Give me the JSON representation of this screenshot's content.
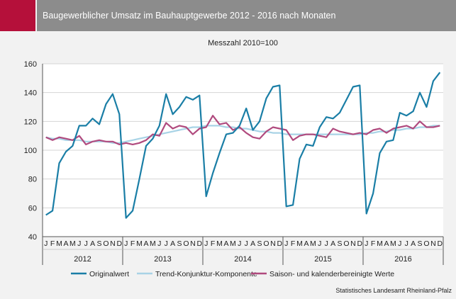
{
  "title": "Baugewerblicher Umsatz im Bauhauptgewerbe 2012 - 2016 nach Monaten",
  "source": "Statistisches Landesamt Rheinland-Pfalz",
  "colors": {
    "accent": "#b5103a",
    "title_bar": "#8c8c8c",
    "original": "#1a7ea6",
    "trend": "#a8d3e6",
    "seasonal": "#b04a7e"
  },
  "chart_data": {
    "type": "line",
    "subtitle": "Messzahl 2010=100",
    "ylim": [
      40,
      160
    ],
    "yticks": [
      40,
      60,
      80,
      100,
      120,
      140,
      160
    ],
    "grid": true,
    "month_labels": [
      "J",
      "F",
      "M",
      "A",
      "M",
      "J",
      "J",
      "A",
      "S",
      "O",
      "N",
      "D"
    ],
    "years": [
      "2012",
      "2013",
      "2014",
      "2015",
      "2016"
    ],
    "legend_position": "bottom",
    "series": [
      {
        "name": "Originalwert",
        "values": [
          55,
          58,
          91,
          99,
          103,
          117,
          117,
          122,
          118,
          132,
          139,
          125,
          53,
          58,
          80,
          103,
          108,
          117,
          139,
          125,
          130,
          137,
          135,
          138,
          68,
          84,
          98,
          111,
          112,
          117,
          129,
          114,
          120,
          136,
          144,
          145,
          61,
          62,
          94,
          104,
          103,
          116,
          123,
          122,
          126,
          135,
          144,
          145,
          56,
          70,
          98,
          106,
          107,
          126,
          124,
          127,
          140,
          130,
          148,
          154
        ]
      },
      {
        "name": "Trend-Konjunktur-Komponente",
        "values": [
          109,
          108,
          108,
          107,
          107,
          107,
          106,
          106,
          106,
          106,
          105,
          105,
          106,
          107,
          108,
          109,
          110,
          111,
          112,
          113,
          114,
          115,
          116,
          116,
          117,
          117,
          117,
          116,
          116,
          115,
          115,
          114,
          113,
          113,
          112,
          112,
          111,
          111,
          111,
          111,
          111,
          111,
          111,
          111,
          111,
          111,
          111,
          111,
          112,
          112,
          113,
          113,
          114,
          114,
          115,
          115,
          116,
          116,
          117,
          117
        ]
      },
      {
        "name": "Saison- und kalenderbereinigte Werte",
        "values": [
          109,
          107,
          109,
          108,
          107,
          110,
          104,
          106,
          107,
          106,
          106,
          104,
          105,
          104,
          105,
          107,
          111,
          110,
          119,
          115,
          117,
          116,
          111,
          115,
          116,
          124,
          118,
          119,
          114,
          116,
          112,
          109,
          108,
          113,
          116,
          115,
          114,
          107,
          110,
          111,
          111,
          110,
          109,
          115,
          113,
          112,
          111,
          112,
          111,
          114,
          115,
          112,
          115,
          116,
          117,
          115,
          120,
          116,
          116,
          117
        ]
      }
    ]
  }
}
